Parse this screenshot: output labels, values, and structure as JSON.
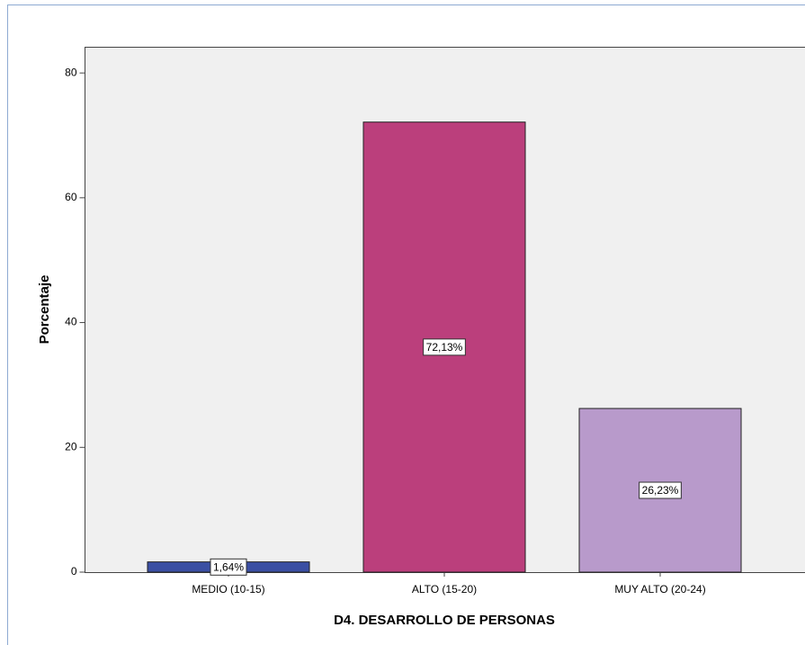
{
  "chart_data": {
    "type": "bar",
    "xlabel": "D4. DESARROLLO DE PERSONAS",
    "ylabel": "Porcentaje",
    "categories": [
      "MEDIO (10-15)",
      "ALTO (15-20)",
      "MUY ALTO (20-24)"
    ],
    "values": [
      1.64,
      72.13,
      26.23
    ],
    "value_labels": [
      "1,64%",
      "72,13%",
      "26,23%"
    ],
    "colors": [
      "#3b4fa3",
      "#bb3f7c",
      "#b89acb"
    ],
    "ylim": [
      0,
      84.2
    ],
    "yticks": [
      0,
      20,
      40,
      60,
      80
    ],
    "grid": false
  }
}
